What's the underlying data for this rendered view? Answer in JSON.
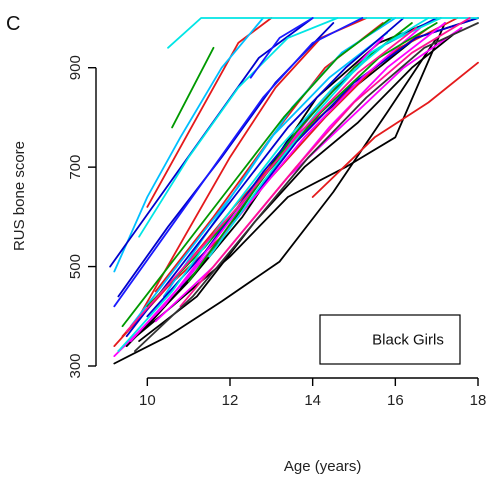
{
  "panel_label": "C",
  "chart_data": {
    "type": "line",
    "title": "",
    "xlabel": "Age (years)",
    "ylabel": "RUS bone score",
    "xlim": [
      9,
      18
    ],
    "ylim": [
      300,
      1000
    ],
    "x_ticks": [
      10,
      12,
      14,
      16,
      18
    ],
    "y_ticks": [
      300,
      500,
      700,
      900
    ],
    "grid": false,
    "legend": {
      "text": "Black Girls",
      "placement": "bottom-right"
    },
    "palette": [
      "#000000",
      "#e41a1c",
      "#00bfff",
      "#0000cd",
      "#ff00ff",
      "#009900",
      "#00e5e5",
      "#ff1493",
      "#1a1aff",
      "#333333"
    ],
    "series": [
      {
        "color": "#000000",
        "x": [
          9.2,
          10.5,
          11.8,
          13.2,
          14.5,
          15.8,
          17.0
        ],
        "y": [
          305,
          360,
          430,
          510,
          650,
          810,
          960
        ]
      },
      {
        "color": "#000000",
        "x": [
          9.3,
          10.6,
          12.0,
          13.4,
          14.8,
          16.0,
          17.2
        ],
        "y": [
          330,
          420,
          520,
          640,
          700,
          760,
          990
        ]
      },
      {
        "color": "#000000",
        "x": [
          9.5,
          11.0,
          12.3,
          13.6,
          15.0,
          16.5,
          18.0
        ],
        "y": [
          340,
          470,
          600,
          760,
          860,
          960,
          1000
        ]
      },
      {
        "color": "#000000",
        "x": [
          10.0,
          11.5,
          12.8,
          14.1,
          15.6,
          17.1
        ],
        "y": [
          380,
          520,
          680,
          840,
          950,
          1000
        ]
      },
      {
        "color": "#000000",
        "x": [
          9.8,
          11.2,
          12.6,
          13.8,
          15.1,
          16.4,
          17.6
        ],
        "y": [
          350,
          440,
          590,
          700,
          790,
          900,
          980
        ]
      },
      {
        "color": "#e41a1c",
        "x": [
          10.0,
          11.2,
          12.2,
          13.0
        ],
        "y": [
          620,
          800,
          950,
          1000
        ]
      },
      {
        "color": "#e41a1c",
        "x": [
          9.8,
          10.9,
          12.0,
          13.1,
          14.2,
          15.3
        ],
        "y": [
          400,
          560,
          720,
          860,
          960,
          1000
        ]
      },
      {
        "color": "#e41a1c",
        "x": [
          9.2,
          10.5,
          11.8,
          13.0,
          14.3,
          15.5,
          16.8
        ],
        "y": [
          340,
          460,
          560,
          680,
          800,
          900,
          980
        ]
      },
      {
        "color": "#e41a1c",
        "x": [
          14.0,
          15.5,
          16.8,
          18.0
        ],
        "y": [
          640,
          760,
          830,
          910
        ]
      },
      {
        "color": "#e41a1c",
        "x": [
          10.2,
          11.6,
          13.0,
          14.3,
          15.7
        ],
        "y": [
          450,
          600,
          760,
          900,
          990
        ]
      },
      {
        "color": "#e41a1c",
        "x": [
          9.4,
          10.7,
          12.1,
          13.4,
          14.8,
          16.1,
          17.5
        ],
        "y": [
          360,
          480,
          620,
          740,
          850,
          940,
          1000
        ]
      },
      {
        "color": "#00bfff",
        "x": [
          9.2,
          10.0,
          10.8,
          11.8,
          12.8
        ],
        "y": [
          490,
          640,
          760,
          900,
          1000
        ]
      },
      {
        "color": "#00bfff",
        "x": [
          9.6,
          10.9,
          12.2,
          13.5,
          14.7,
          16.0
        ],
        "y": [
          380,
          520,
          660,
          820,
          930,
          1000
        ]
      },
      {
        "color": "#00bfff",
        "x": [
          10.4,
          11.7,
          13.0,
          14.4,
          15.8
        ],
        "y": [
          440,
          600,
          760,
          880,
          970
        ]
      },
      {
        "color": "#0000cd",
        "x": [
          9.1,
          10.3,
          11.5,
          12.7,
          14.0
        ],
        "y": [
          500,
          640,
          780,
          920,
          1000
        ]
      },
      {
        "color": "#0000cd",
        "x": [
          9.5,
          10.8,
          12.1,
          13.4,
          14.8,
          16.2
        ],
        "y": [
          360,
          500,
          640,
          780,
          900,
          1000
        ]
      },
      {
        "color": "#0000cd",
        "x": [
          10.0,
          11.4,
          12.8,
          14.2,
          15.6,
          17.0
        ],
        "y": [
          400,
          530,
          690,
          830,
          940,
          1000
        ]
      },
      {
        "color": "#0000cd",
        "x": [
          9.3,
          10.5,
          11.8,
          13.1,
          14.5
        ],
        "y": [
          440,
          580,
          720,
          870,
          990
        ]
      },
      {
        "color": "#0000cd",
        "x": [
          10.8,
          12.2,
          13.6,
          15.0,
          16.5,
          18.0
        ],
        "y": [
          460,
          600,
          750,
          870,
          960,
          1000
        ]
      },
      {
        "color": "#ff00ff",
        "x": [
          9.6,
          11.0,
          12.4,
          13.8,
          15.2,
          16.6
        ],
        "y": [
          350,
          480,
          620,
          760,
          880,
          980
        ]
      },
      {
        "color": "#ff00ff",
        "x": [
          10.2,
          11.6,
          13.0,
          14.4,
          15.8,
          17.2
        ],
        "y": [
          390,
          500,
          640,
          780,
          900,
          990
        ]
      },
      {
        "color": "#ff00ff",
        "x": [
          12.0,
          13.4,
          14.8,
          16.2,
          17.6
        ],
        "y": [
          540,
          680,
          790,
          900,
          980
        ]
      },
      {
        "color": "#ff00ff",
        "x": [
          9.2,
          10.4,
          11.7,
          13.0,
          14.3,
          15.7
        ],
        "y": [
          320,
          420,
          560,
          700,
          840,
          960
        ]
      },
      {
        "color": "#009900",
        "x": [
          10.6,
          11.6
        ],
        "y": [
          780,
          940
        ]
      },
      {
        "color": "#009900",
        "x": [
          9.4,
          10.7,
          12.0,
          13.3,
          14.6,
          15.9
        ],
        "y": [
          380,
          520,
          660,
          800,
          920,
          1000
        ]
      },
      {
        "color": "#009900",
        "x": [
          10.0,
          11.4,
          12.8,
          14.2,
          15.6,
          17.0
        ],
        "y": [
          420,
          540,
          680,
          810,
          920,
          990
        ]
      },
      {
        "color": "#009900",
        "x": [
          11.0,
          12.3,
          13.6,
          15.0,
          16.4
        ],
        "y": [
          470,
          620,
          770,
          900,
          990
        ]
      },
      {
        "color": "#00e5e5",
        "x": [
          10.5,
          11.3,
          12.0,
          14.0,
          18.0
        ],
        "y": [
          940,
          1000,
          1000,
          1000,
          1000
        ]
      },
      {
        "color": "#00e5e5",
        "x": [
          9.8,
          11.0,
          12.2,
          13.4,
          14.6
        ],
        "y": [
          560,
          720,
          860,
          960,
          1000
        ]
      },
      {
        "color": "#00e5e5",
        "x": [
          9.3,
          10.6,
          11.9,
          13.2,
          14.5,
          15.8,
          17.1
        ],
        "y": [
          330,
          450,
          600,
          740,
          860,
          950,
          1000
        ]
      },
      {
        "color": "#00e5e5",
        "x": [
          11.5,
          12.8,
          14.1,
          15.4,
          16.8
        ],
        "y": [
          520,
          670,
          810,
          930,
          1000
        ]
      },
      {
        "color": "#ff1493",
        "x": [
          9.5,
          10.9,
          12.3,
          13.7,
          15.1,
          16.5
        ],
        "y": [
          370,
          500,
          630,
          770,
          890,
          980
        ]
      },
      {
        "color": "#ff1493",
        "x": [
          10.8,
          12.2,
          13.6,
          15.0,
          16.4,
          17.8
        ],
        "y": [
          420,
          560,
          700,
          830,
          930,
          1000
        ]
      },
      {
        "color": "#1a1aff",
        "x": [
          12.5,
          13.2,
          14.0
        ],
        "y": [
          880,
          960,
          1000
        ]
      },
      {
        "color": "#1a1aff",
        "x": [
          9.2,
          10.4,
          11.6,
          12.8,
          14.0,
          15.2
        ],
        "y": [
          420,
          560,
          700,
          840,
          950,
          1000
        ]
      },
      {
        "color": "#333333",
        "x": [
          9.7,
          11.1,
          12.5,
          13.9,
          15.3,
          16.7,
          18.0
        ],
        "y": [
          330,
          440,
          580,
          720,
          840,
          940,
          990
        ]
      }
    ]
  }
}
